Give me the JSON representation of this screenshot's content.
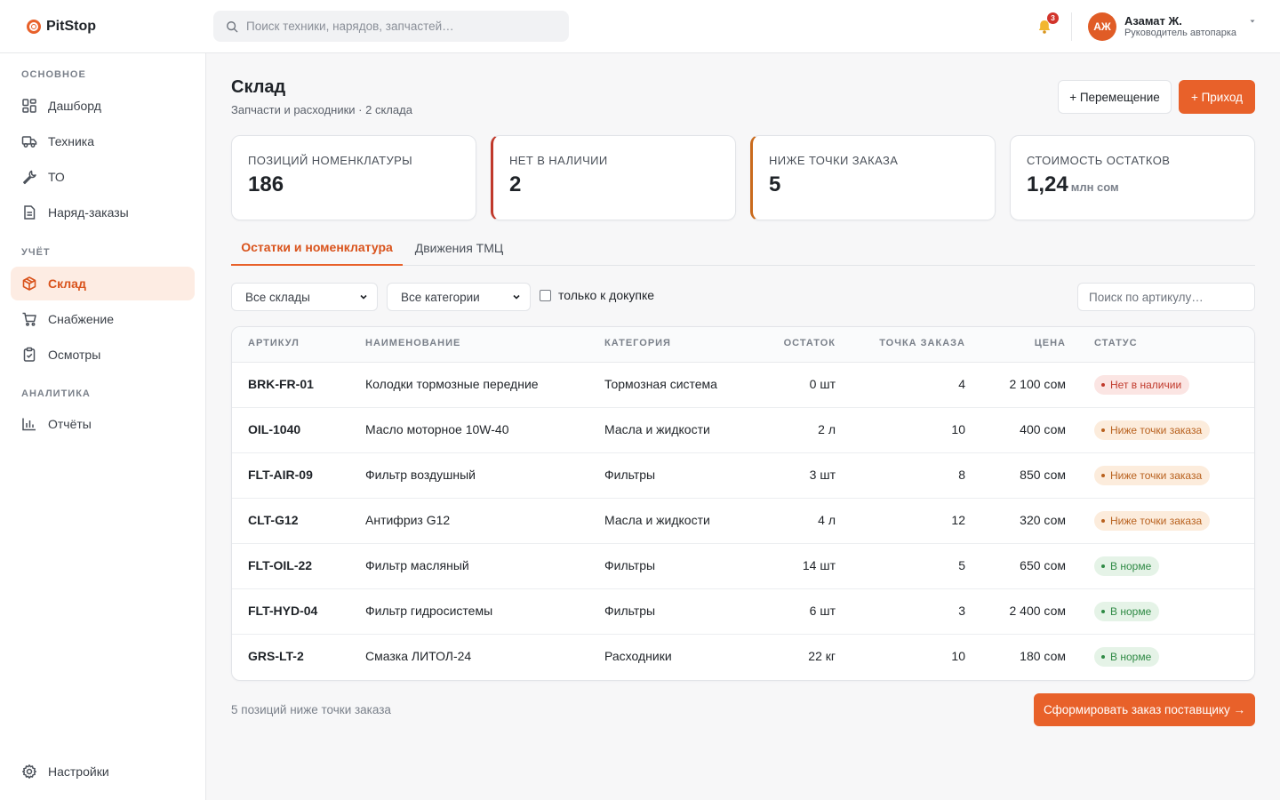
{
  "brand": {
    "name": "PitStop"
  },
  "search": {
    "placeholder": "Поиск техники, нарядов, запчастей…"
  },
  "notifications": {
    "count": "3"
  },
  "user": {
    "initials": "АЖ",
    "name": "Азамат Ж.",
    "role": "Руководитель автопарка"
  },
  "sidebar": {
    "sections": [
      "ОСНОВНОЕ",
      "УЧЁТ",
      "АНАЛИТИКА"
    ],
    "items": [
      {
        "label": "Дашборд",
        "icon": "dashboard-icon"
      },
      {
        "label": "Техника",
        "icon": "truck-icon"
      },
      {
        "label": "ТО",
        "icon": "wrench-icon"
      },
      {
        "label": "Наряд-заказы",
        "icon": "document-icon"
      },
      {
        "label": "Склад",
        "icon": "box-icon",
        "active": true
      },
      {
        "label": "Снабжение",
        "icon": "cart-icon"
      },
      {
        "label": "Осмотры",
        "icon": "clipboard-icon"
      },
      {
        "label": "Отчёты",
        "icon": "bar-chart-icon"
      }
    ],
    "settings": {
      "label": "Настройки",
      "icon": "gear-icon"
    }
  },
  "page": {
    "title": "Склад",
    "subtitle": "Запчасти и расходники · 2 склада",
    "move_button": "+ Перемещение",
    "income_button": "+ Приход"
  },
  "kpis": [
    {
      "label": "ПОЗИЦИЙ НОМЕНКЛАТУРЫ",
      "value": "186",
      "unit": ""
    },
    {
      "label": "НЕТ В НАЛИЧИИ",
      "value": "2",
      "unit": "",
      "accent": "#c0392b"
    },
    {
      "label": "НИЖЕ ТОЧКИ ЗАКАЗА",
      "value": "5",
      "unit": "",
      "accent": "#c96a1c"
    },
    {
      "label": "СТОИМОСТЬ ОСТАТКОВ",
      "value": "1,24",
      "unit": "млн сом"
    }
  ],
  "tabs": [
    {
      "label": "Остатки и номенклатура",
      "active": true
    },
    {
      "label": "Движения ТМЦ",
      "active": false
    }
  ],
  "filters": {
    "warehouse": "Все склады",
    "category": "Все категории",
    "reorder_only_label": "только к докупке",
    "sku_search_placeholder": "Поиск по артикулу…"
  },
  "table": {
    "headers": {
      "sku": "АРТИКУЛ",
      "name": "НАИМЕНОВАНИЕ",
      "category": "КАТЕГОРИЯ",
      "stock": "ОСТАТОК",
      "reorder": "ТОЧКА ЗАКАЗА",
      "price": "ЦЕНА",
      "status": "СТАТУС"
    },
    "rows": [
      {
        "sku": "BRK-FR-01",
        "name": "Колодки тормозные передние",
        "category": "Тормозная система",
        "stock": "0 шт",
        "reorder": "4",
        "price": "2 100 сом",
        "status": "Нет в наличии",
        "status_type": "out"
      },
      {
        "sku": "OIL-1040",
        "name": "Масло моторное 10W-40",
        "category": "Масла и жидкости",
        "stock": "2 л",
        "reorder": "10",
        "price": "400 сом",
        "status": "Ниже точки заказа",
        "status_type": "low"
      },
      {
        "sku": "FLT-AIR-09",
        "name": "Фильтр воздушный",
        "category": "Фильтры",
        "stock": "3 шт",
        "reorder": "8",
        "price": "850 сом",
        "status": "Ниже точки заказа",
        "status_type": "low"
      },
      {
        "sku": "CLT-G12",
        "name": "Антифриз G12",
        "category": "Масла и жидкости",
        "stock": "4 л",
        "reorder": "12",
        "price": "320 сом",
        "status": "Ниже точки заказа",
        "status_type": "low"
      },
      {
        "sku": "FLT-OIL-22",
        "name": "Фильтр масляный",
        "category": "Фильтры",
        "stock": "14 шт",
        "reorder": "5",
        "price": "650 сом",
        "status": "В норме",
        "status_type": "ok"
      },
      {
        "sku": "FLT-HYD-04",
        "name": "Фильтр гидросистемы",
        "category": "Фильтры",
        "stock": "6 шт",
        "reorder": "3",
        "price": "2 400 сом",
        "status": "В норме",
        "status_type": "ok"
      },
      {
        "sku": "GRS-LT-2",
        "name": "Смазка ЛИТОЛ-24",
        "category": "Расходники",
        "stock": "22 кг",
        "reorder": "10",
        "price": "180 сом",
        "status": "В норме",
        "status_type": "ok"
      }
    ]
  },
  "footer": {
    "note": "5 позиций ниже точки заказа",
    "order_button": "Сформировать заказ поставщику →"
  },
  "colors": {
    "accent": "#e8612a",
    "out": "#c0392b",
    "low": "#b8611e",
    "ok": "#2f8a45"
  }
}
